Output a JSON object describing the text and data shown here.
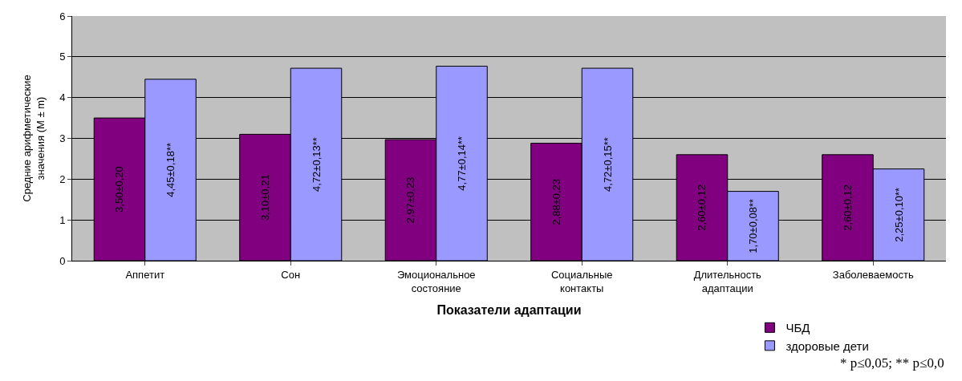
{
  "chart_data": {
    "type": "bar",
    "categories": [
      "Аппетит",
      "Сон",
      "Эмоциональное\nсостояние",
      "Социальные\nконтакты",
      "Длительность\nадаптации",
      "Заболеваемость"
    ],
    "series": [
      {
        "name": "ЧБД",
        "color": "#800080",
        "values": [
          3.5,
          3.1,
          2.97,
          2.88,
          2.6,
          2.6
        ],
        "value_labels": [
          "3,50±0,20",
          "3,10±0,21",
          "2,97±0,23",
          "2,88±0,23",
          "2,60±0,12",
          "2,60±0,12"
        ]
      },
      {
        "name": "здоровые дети",
        "color": "#9999ff",
        "values": [
          4.45,
          4.72,
          4.77,
          4.72,
          1.7,
          2.25
        ],
        "value_labels": [
          "4,45±0,18**",
          "4,72±0,13**",
          "4,77±0,14**",
          "4,72±0,15**",
          "1,70±0,08**",
          "2,25±0,10**"
        ]
      }
    ],
    "xlabel": "Показатели адаптации",
    "ylabel": "Средние арифметические\nзначения (M ± m)",
    "ylim": [
      0,
      6
    ],
    "yticks": [
      0,
      1,
      2,
      3,
      4,
      5,
      6
    ],
    "grid": "y",
    "legend": "bottom right",
    "annotations": [
      "* p≤0,05; ** p≤0,0"
    ]
  }
}
